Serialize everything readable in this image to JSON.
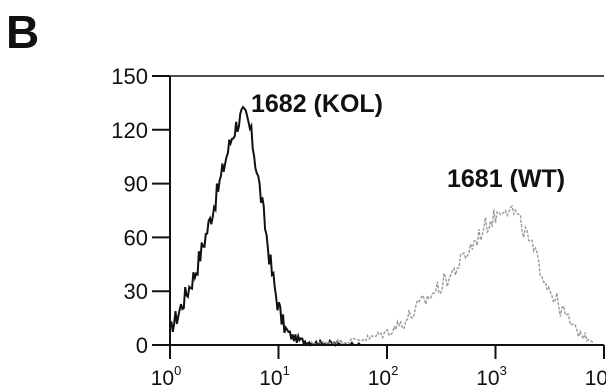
{
  "panel_label": "B",
  "chart_data": {
    "type": "line",
    "title": "",
    "xlabel": "",
    "ylabel": "",
    "xscale": "log",
    "xlim": [
      1,
      10000
    ],
    "ylim": [
      0,
      150
    ],
    "y_ticks": [
      0,
      30,
      60,
      90,
      120,
      150
    ],
    "y_tick_labels": [
      "0",
      "30",
      "60",
      "90",
      "120",
      "150"
    ],
    "x_ticks": [
      1,
      10,
      100,
      1000,
      10000
    ],
    "x_tick_labels": [
      {
        "base": "10",
        "exp": "0"
      },
      {
        "base": "10",
        "exp": "1"
      },
      {
        "base": "10",
        "exp": "2"
      },
      {
        "base": "10",
        "exp": "3"
      },
      {
        "base": "10",
        "exp": "4"
      }
    ],
    "grid": false,
    "series": [
      {
        "name": "1682 (KOL)",
        "color": "#111111",
        "x": [
          1,
          1.2,
          1.4,
          1.7,
          2.0,
          2.3,
          2.6,
          3.0,
          3.4,
          3.8,
          4.2,
          4.6,
          5.0,
          5.4,
          5.8,
          6.3,
          7.0,
          7.8,
          8.6,
          9.5,
          10.5,
          11.5,
          13,
          15,
          18,
          22,
          30,
          40,
          60
        ],
        "y": [
          8,
          18,
          28,
          40,
          55,
          68,
          80,
          95,
          108,
          118,
          124,
          128,
          127,
          122,
          112,
          98,
          80,
          60,
          42,
          28,
          16,
          9,
          5,
          3,
          2,
          1,
          1,
          0,
          0
        ]
      },
      {
        "name": "1681 (WT)",
        "color": "#9a9a9a",
        "x": [
          20,
          40,
          70,
          100,
          150,
          200,
          300,
          400,
          500,
          650,
          800,
          1000,
          1200,
          1500,
          1900,
          2400,
          3000,
          4000,
          5500,
          8000
        ],
        "y": [
          1,
          2,
          4,
          7,
          14,
          22,
          32,
          40,
          48,
          58,
          66,
          72,
          78,
          74,
          62,
          48,
          34,
          20,
          8,
          2
        ]
      }
    ]
  }
}
